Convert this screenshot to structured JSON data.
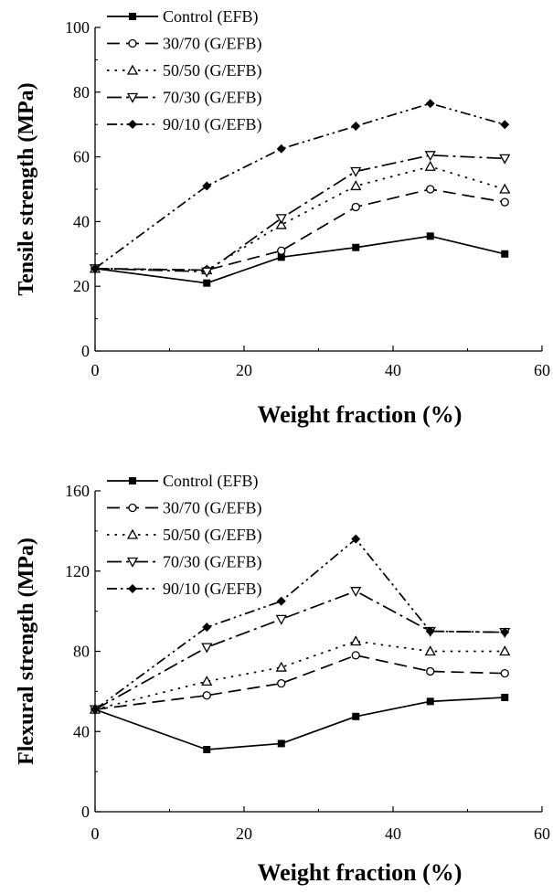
{
  "chart_data": [
    {
      "type": "line",
      "title": "",
      "xlabel": "Weight fraction (%)",
      "ylabel": "Tensile strength (MPa)",
      "xlim": [
        0,
        60
      ],
      "ylim": [
        0,
        100
      ],
      "xticks": [
        "0",
        "20",
        "40",
        "60"
      ],
      "yticks": [
        "0",
        "20",
        "40",
        "60",
        "80",
        "100"
      ],
      "grid": false,
      "legend": "top-left",
      "x": [
        0,
        15,
        25,
        35,
        45,
        55
      ],
      "series": [
        {
          "name": "Control (EFB)",
          "values": [
            25.5,
            21,
            29,
            32,
            35.5,
            30
          ],
          "marker": "square",
          "dash": "solid"
        },
        {
          "name": "30/70 (G/EFB)",
          "values": [
            25.5,
            25,
            31,
            44.5,
            50,
            46
          ],
          "marker": "circle-open",
          "dash": "dashed"
        },
        {
          "name": "50/50 (G/EFB)",
          "values": [
            25.5,
            25,
            39,
            51,
            57,
            50
          ],
          "marker": "triangle-up-open",
          "dash": "dotted"
        },
        {
          "name": "70/30 (G/EFB)",
          "values": [
            25.5,
            24.5,
            41,
            55.5,
            60.5,
            59.5
          ],
          "marker": "triangle-down-open",
          "dash": "dash-dot"
        },
        {
          "name": "90/10 (G/EFB)",
          "values": [
            25.5,
            51,
            62.5,
            69.5,
            76.5,
            70
          ],
          "marker": "diamond",
          "dash": "dash-dot-dot"
        }
      ]
    },
    {
      "type": "line",
      "title": "",
      "xlabel": "Weight fraction (%)",
      "ylabel": "Flexural strength (MPa)",
      "xlim": [
        0,
        60
      ],
      "ylim": [
        0,
        160
      ],
      "xticks": [
        "0",
        "20",
        "40",
        "60"
      ],
      "yticks": [
        "0",
        "40",
        "80",
        "120",
        "160"
      ],
      "grid": false,
      "legend": "top-left",
      "x": [
        0,
        15,
        25,
        35,
        45,
        55
      ],
      "series": [
        {
          "name": "Control (EFB)",
          "values": [
            51,
            31,
            34,
            47.5,
            55,
            57
          ],
          "marker": "square",
          "dash": "solid"
        },
        {
          "name": "30/70 (G/EFB)",
          "values": [
            51,
            58,
            64,
            78,
            70,
            69
          ],
          "marker": "circle-open",
          "dash": "dashed"
        },
        {
          "name": "50/50 (G/EFB)",
          "values": [
            51,
            65,
            72,
            85,
            80,
            80
          ],
          "marker": "triangle-up-open",
          "dash": "dotted"
        },
        {
          "name": "70/30 (G/EFB)",
          "values": [
            51,
            82,
            96,
            110,
            90,
            89.5
          ],
          "marker": "triangle-down-open",
          "dash": "dash-dot"
        },
        {
          "name": "90/10 (G/EFB)",
          "values": [
            51,
            92,
            105,
            136,
            90,
            89.5
          ],
          "marker": "diamond",
          "dash": "dash-dot-dot"
        }
      ]
    }
  ]
}
